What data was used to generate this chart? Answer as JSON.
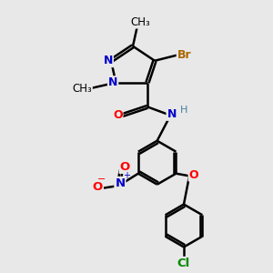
{
  "background_color": "#e8e8e8",
  "atoms": {
    "colors": {
      "C": "#000000",
      "N": "#0000cc",
      "O": "#ff0000",
      "Br": "#aa6600",
      "Cl": "#008800",
      "H": "#4a7fa0"
    }
  },
  "bond_color": "#000000",
  "bond_width": 1.8,
  "figsize": [
    3.0,
    3.0
  ],
  "dpi": 100
}
